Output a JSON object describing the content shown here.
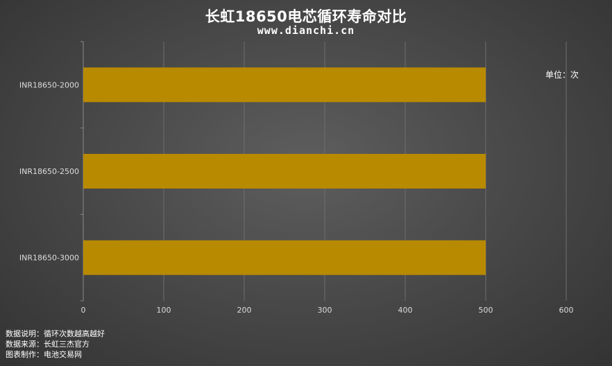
{
  "header": {
    "title": "长虹18650电芯循环寿命对比",
    "subtitle": "www.dianchi.cn"
  },
  "unit_label": "单位：次",
  "notes": [
    "数据说明：循环次数越高越好",
    "数据来源：长虹三杰官方",
    "图表制作：电池交易网"
  ],
  "colors": {
    "bar": "#B88A00",
    "axis_text": "#dddddd",
    "grid": "#6e6e6e"
  },
  "chart_data": {
    "type": "bar",
    "orientation": "horizontal",
    "title": "长虹18650电芯循环寿命对比",
    "categories": [
      "INR18650-2000",
      "INR18650-2500",
      "INR18650-3000"
    ],
    "values": [
      500,
      500,
      500
    ],
    "xlim": [
      0,
      600
    ],
    "xticks": [
      0,
      100,
      200,
      300,
      400,
      500,
      600
    ],
    "grid": true,
    "legend": "none"
  }
}
